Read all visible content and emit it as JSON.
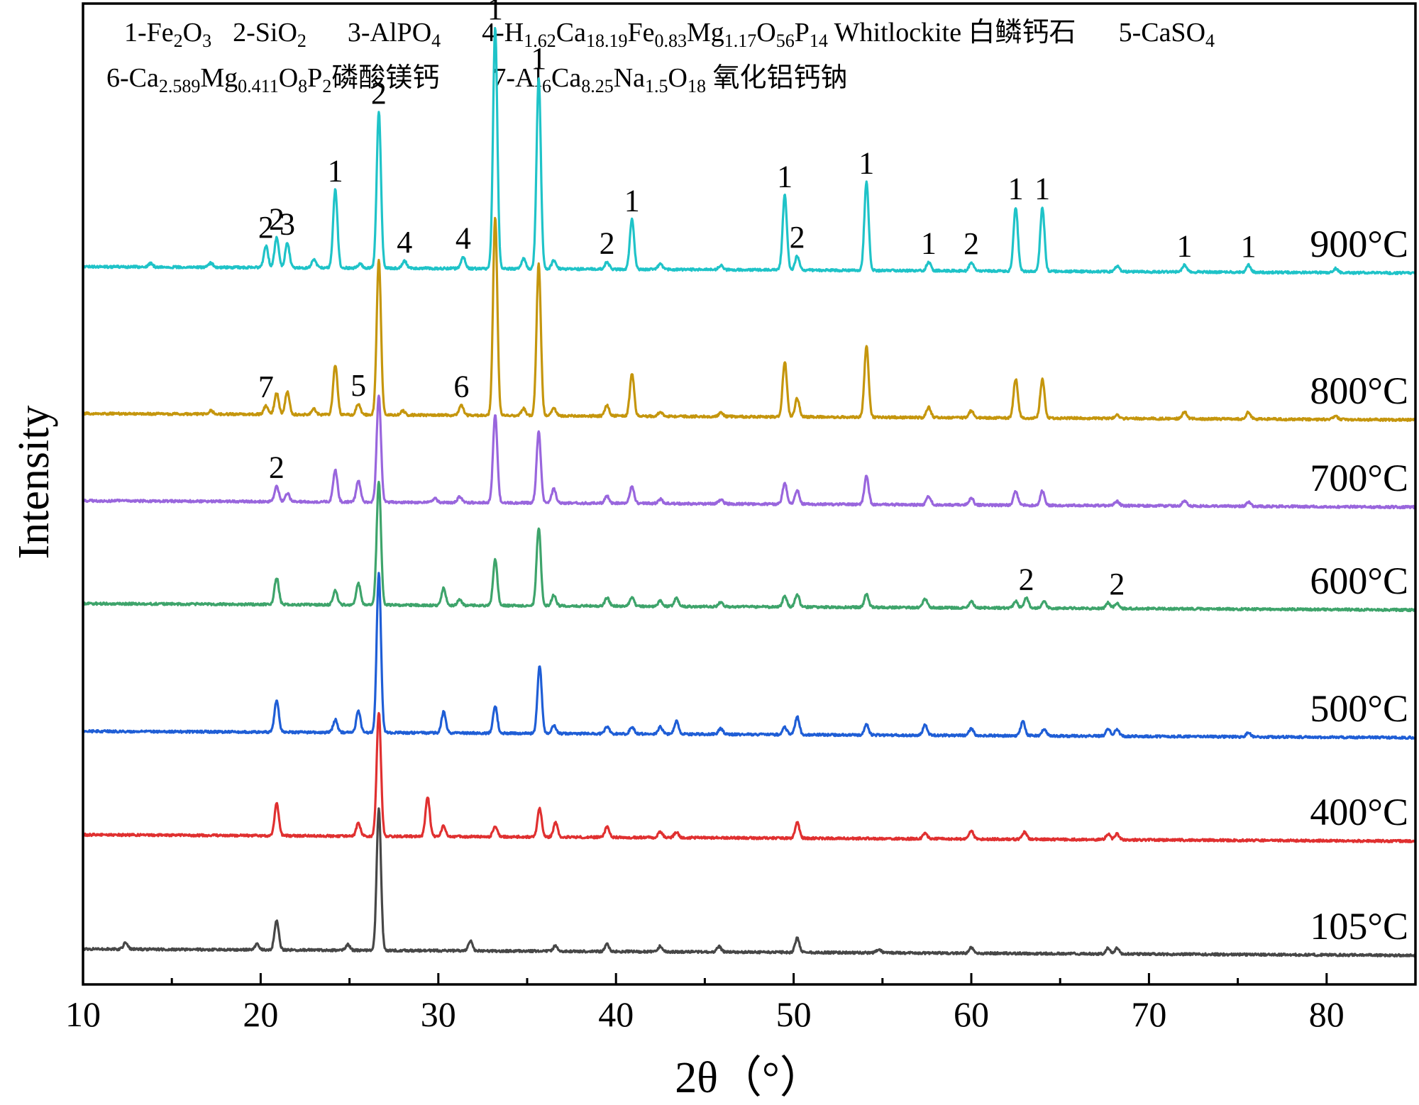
{
  "chart_data": {
    "type": "line",
    "title": "",
    "xlabel": "2θ（°）",
    "ylabel": "Intensity",
    "xlim": [
      10,
      85
    ],
    "x_ticks": [
      10,
      20,
      30,
      40,
      50,
      60,
      70,
      80
    ],
    "grid": false,
    "legend": [
      {
        "id": "1",
        "text": "1-Fe₂O₃"
      },
      {
        "id": "2",
        "text": "2-SiO₂"
      },
      {
        "id": "3",
        "text": "3-AlPO₄"
      },
      {
        "id": "4",
        "text": "4-H₁.₆₂Ca₁₈.₁₉Fe₀.₈₃Mg₁.₁₇O₅₆P₁₄ Whitlockite 白鳞钙石"
      },
      {
        "id": "5",
        "text": "5-CaSO₄"
      },
      {
        "id": "6",
        "text": "6-Ca₂.₅₈₉Mg₀.₄₁₁O₈P₂磷酸镁钙"
      },
      {
        "id": "7",
        "text": "7-Al₆Ca₈.₂₅Na₁.₅O₁₈ 氧化铝钙钠"
      }
    ],
    "series": [
      {
        "name": "900°C",
        "color": "#1fc3c8",
        "peaks": [
          [
            13.8,
            5
          ],
          [
            17.2,
            6
          ],
          [
            20.3,
            30
          ],
          [
            20.9,
            42
          ],
          [
            21.5,
            35
          ],
          [
            23.0,
            12
          ],
          [
            24.2,
            110
          ],
          [
            25.6,
            6
          ],
          [
            26.65,
            220
          ],
          [
            28.1,
            10
          ],
          [
            31.4,
            16
          ],
          [
            33.2,
            340
          ],
          [
            34.8,
            14
          ],
          [
            35.65,
            270
          ],
          [
            36.5,
            12
          ],
          [
            39.5,
            10
          ],
          [
            40.9,
            70
          ],
          [
            42.5,
            8
          ],
          [
            45.9,
            6
          ],
          [
            49.5,
            105
          ],
          [
            50.2,
            20
          ],
          [
            54.1,
            125
          ],
          [
            57.6,
            12
          ],
          [
            60.0,
            12
          ],
          [
            62.5,
            90
          ],
          [
            64.0,
            90
          ],
          [
            68.2,
            8
          ],
          [
            72.0,
            10
          ],
          [
            75.6,
            10
          ],
          [
            80.5,
            6
          ]
        ]
      },
      {
        "name": "800°C",
        "color": "#c5960d",
        "peaks": [
          [
            17.2,
            5
          ],
          [
            20.3,
            12
          ],
          [
            20.9,
            30
          ],
          [
            21.5,
            32
          ],
          [
            23.0,
            8
          ],
          [
            24.2,
            70
          ],
          [
            25.5,
            15
          ],
          [
            26.65,
            220
          ],
          [
            28.0,
            6
          ],
          [
            31.3,
            14
          ],
          [
            33.2,
            280
          ],
          [
            34.8,
            10
          ],
          [
            35.65,
            215
          ],
          [
            36.5,
            10
          ],
          [
            39.5,
            15
          ],
          [
            40.9,
            60
          ],
          [
            42.5,
            6
          ],
          [
            45.9,
            5
          ],
          [
            49.5,
            78
          ],
          [
            50.2,
            26
          ],
          [
            54.1,
            100
          ],
          [
            57.6,
            15
          ],
          [
            60.0,
            10
          ],
          [
            62.5,
            55
          ],
          [
            64.0,
            55
          ],
          [
            68.2,
            6
          ],
          [
            72.0,
            10
          ],
          [
            75.6,
            10
          ],
          [
            80.5,
            5
          ]
        ]
      },
      {
        "name": "700°C",
        "color": "#9966dd",
        "peaks": [
          [
            20.9,
            22
          ],
          [
            21.5,
            12
          ],
          [
            24.2,
            45
          ],
          [
            25.5,
            30
          ],
          [
            26.65,
            150
          ],
          [
            29.8,
            6
          ],
          [
            31.2,
            8
          ],
          [
            33.2,
            125
          ],
          [
            35.65,
            100
          ],
          [
            36.5,
            20
          ],
          [
            39.5,
            10
          ],
          [
            40.9,
            24
          ],
          [
            42.5,
            6
          ],
          [
            45.9,
            6
          ],
          [
            49.5,
            30
          ],
          [
            50.2,
            20
          ],
          [
            54.1,
            40
          ],
          [
            57.6,
            12
          ],
          [
            60.0,
            10
          ],
          [
            62.5,
            20
          ],
          [
            64.0,
            20
          ],
          [
            68.2,
            6
          ],
          [
            72.0,
            8
          ],
          [
            75.6,
            6
          ]
        ]
      },
      {
        "name": "600°C",
        "color": "#3ea46b",
        "peaks": [
          [
            20.9,
            38
          ],
          [
            24.2,
            20
          ],
          [
            25.5,
            30
          ],
          [
            26.65,
            175
          ],
          [
            30.3,
            24
          ],
          [
            31.2,
            8
          ],
          [
            33.2,
            65
          ],
          [
            35.65,
            110
          ],
          [
            36.5,
            15
          ],
          [
            39.5,
            12
          ],
          [
            40.9,
            12
          ],
          [
            42.5,
            8
          ],
          [
            43.4,
            12
          ],
          [
            45.9,
            6
          ],
          [
            49.5,
            15
          ],
          [
            50.2,
            18
          ],
          [
            54.1,
            18
          ],
          [
            57.4,
            12
          ],
          [
            60.0,
            10
          ],
          [
            62.5,
            10
          ],
          [
            63.1,
            14
          ],
          [
            64.1,
            10
          ],
          [
            67.7,
            8
          ],
          [
            68.2,
            8
          ]
        ]
      },
      {
        "name": "500°C",
        "color": "#1f5ed6",
        "peaks": [
          [
            20.9,
            45
          ],
          [
            24.2,
            18
          ],
          [
            25.5,
            30
          ],
          [
            26.65,
            225
          ],
          [
            30.3,
            30
          ],
          [
            33.2,
            38
          ],
          [
            35.7,
            95
          ],
          [
            36.5,
            12
          ],
          [
            39.5,
            10
          ],
          [
            40.9,
            10
          ],
          [
            42.5,
            10
          ],
          [
            43.4,
            18
          ],
          [
            45.9,
            8
          ],
          [
            49.5,
            10
          ],
          [
            50.2,
            25
          ],
          [
            54.1,
            15
          ],
          [
            57.4,
            15
          ],
          [
            60.0,
            10
          ],
          [
            62.9,
            20
          ],
          [
            64.1,
            10
          ],
          [
            67.7,
            10
          ],
          [
            68.2,
            10
          ],
          [
            75.6,
            6
          ]
        ]
      },
      {
        "name": "400°C",
        "color": "#e03030",
        "peaks": [
          [
            20.9,
            45
          ],
          [
            25.5,
            18
          ],
          [
            26.65,
            175
          ],
          [
            29.4,
            55
          ],
          [
            30.3,
            15
          ],
          [
            33.2,
            15
          ],
          [
            35.7,
            40
          ],
          [
            36.6,
            20
          ],
          [
            39.5,
            15
          ],
          [
            42.5,
            8
          ],
          [
            43.4,
            8
          ],
          [
            50.2,
            22
          ],
          [
            57.4,
            8
          ],
          [
            60.0,
            12
          ],
          [
            63.0,
            10
          ],
          [
            67.7,
            8
          ],
          [
            68.2,
            8
          ]
        ]
      },
      {
        "name": "105°C",
        "color": "#474747",
        "peaks": [
          [
            12.4,
            10
          ],
          [
            19.8,
            8
          ],
          [
            20.9,
            42
          ],
          [
            24.9,
            8
          ],
          [
            26.65,
            200
          ],
          [
            31.8,
            14
          ],
          [
            36.6,
            8
          ],
          [
            39.5,
            10
          ],
          [
            42.5,
            8
          ],
          [
            45.8,
            8
          ],
          [
            50.2,
            20
          ],
          [
            54.8,
            5
          ],
          [
            60.0,
            8
          ],
          [
            67.7,
            8
          ],
          [
            68.2,
            8
          ]
        ]
      }
    ],
    "peak_annotations": [
      {
        "series": "900°C",
        "label": "2",
        "x": 20.3
      },
      {
        "series": "900°C",
        "label": "2",
        "x": 20.9
      },
      {
        "series": "900°C",
        "label": "3",
        "x": 21.5
      },
      {
        "series": "900°C",
        "label": "1",
        "x": 24.2
      },
      {
        "series": "900°C",
        "label": "2",
        "x": 26.65
      },
      {
        "series": "900°C",
        "label": "4",
        "x": 28.1
      },
      {
        "series": "900°C",
        "label": "4",
        "x": 31.4
      },
      {
        "series": "900°C",
        "label": "1",
        "x": 33.2
      },
      {
        "series": "900°C",
        "label": "1",
        "x": 35.65
      },
      {
        "series": "900°C",
        "label": "2",
        "x": 39.5
      },
      {
        "series": "900°C",
        "label": "1",
        "x": 40.9
      },
      {
        "series": "900°C",
        "label": "1",
        "x": 49.5
      },
      {
        "series": "900°C",
        "label": "2",
        "x": 50.2
      },
      {
        "series": "900°C",
        "label": "1",
        "x": 54.1
      },
      {
        "series": "900°C",
        "label": "1",
        "x": 57.6
      },
      {
        "series": "900°C",
        "label": "2",
        "x": 60.0
      },
      {
        "series": "900°C",
        "label": "1",
        "x": 62.5
      },
      {
        "series": "900°C",
        "label": "1",
        "x": 64.0
      },
      {
        "series": "900°C",
        "label": "1",
        "x": 72.0
      },
      {
        "series": "900°C",
        "label": "1",
        "x": 75.6
      },
      {
        "series": "800°C",
        "label": "7",
        "x": 20.3
      },
      {
        "series": "800°C",
        "label": "5",
        "x": 25.5
      },
      {
        "series": "800°C",
        "label": "6",
        "x": 31.3
      },
      {
        "series": "700°C",
        "label": "2",
        "x": 20.9
      },
      {
        "series": "600°C",
        "label": "2",
        "x": 63.1
      },
      {
        "series": "600°C",
        "label": "2",
        "x": 68.2
      }
    ]
  }
}
